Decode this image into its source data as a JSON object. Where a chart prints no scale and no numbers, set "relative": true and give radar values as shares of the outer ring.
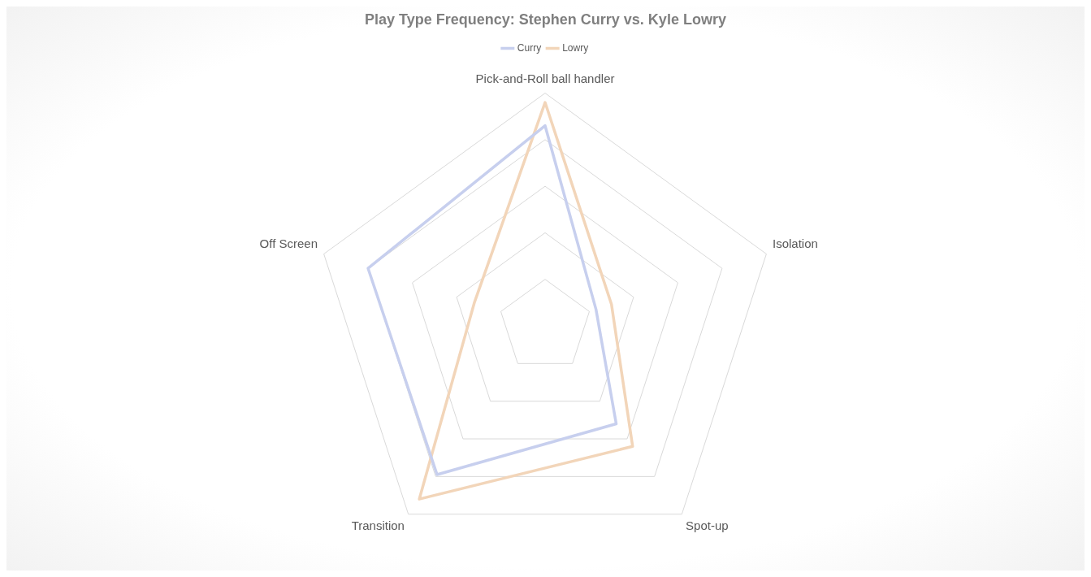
{
  "chart_data": {
    "type": "radar",
    "title": "Play Type Frequency: Stephen Curry vs. Kyle Lowry",
    "categories": [
      "Pick-and-Roll ball handler",
      "Isolation",
      "Spot-up",
      "Transition",
      "Off Screen"
    ],
    "series": [
      {
        "name": "Curry",
        "color": "#c7cfee",
        "values": [
          0.86,
          0.23,
          0.52,
          0.79,
          0.8
        ]
      },
      {
        "name": "Lowry",
        "color": "#f2d5b9",
        "values": [
          0.96,
          0.3,
          0.64,
          0.92,
          0.32
        ]
      }
    ],
    "relative": true,
    "grid": true,
    "legend": "top"
  }
}
